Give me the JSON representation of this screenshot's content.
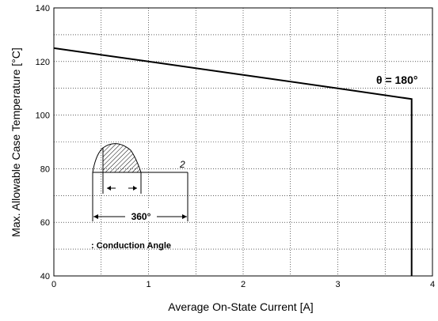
{
  "chart_data": {
    "type": "line",
    "xlabel": "Average On-State Current [A]",
    "ylabel": "Max. Allowable Case Temperature [°C]",
    "xlim": [
      0,
      4
    ],
    "ylim": [
      40,
      140
    ],
    "xticks": [
      0,
      1,
      2,
      3,
      4
    ],
    "yticks": [
      40,
      60,
      80,
      100,
      120,
      140
    ],
    "grid": true,
    "series": [
      {
        "x": [
          0,
          1,
          2,
          3,
          3.78,
          3.78
        ],
        "y": [
          125,
          120,
          115,
          110,
          106,
          40
        ]
      }
    ],
    "annotations": {
      "theta_label": "θ = 180°",
      "theta_superscript": "2",
      "inset_period": "360°",
      "inset_caption": ": Conduction Angle"
    }
  }
}
